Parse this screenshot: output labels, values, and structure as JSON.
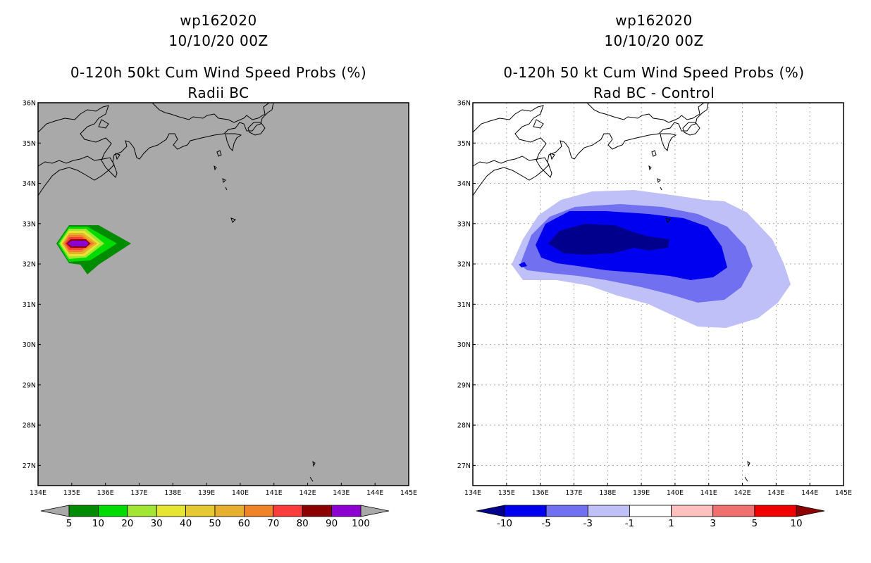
{
  "left_panel": {
    "storm_id": "wp162020",
    "datetime": "10/10/20 00Z",
    "title": "0-120h 50kt Cum Wind Speed Probs (%)",
    "subtitle": "Radii BC",
    "background_color": "#a9a9a9",
    "colorbar": {
      "labels": [
        "5",
        "10",
        "20",
        "30",
        "40",
        "50",
        "60",
        "70",
        "80",
        "90",
        "100"
      ],
      "colors": [
        "#008c00",
        "#00dc00",
        "#a0e632",
        "#e6e632",
        "#e6c832",
        "#e6af2d",
        "#f08228",
        "#fa3c3c",
        "#8c0000",
        "#8c00d2"
      ]
    }
  },
  "right_panel": {
    "storm_id": "wp162020",
    "datetime": "10/10/20 00Z",
    "title": "0-120h 50 kt Cum Wind Speed Probs (%)",
    "subtitle": "Rad BC - Control",
    "colorbar": {
      "labels": [
        "-10",
        "-5",
        "-3",
        "-1",
        "1",
        "3",
        "5",
        "10"
      ],
      "colors": [
        "#00008c",
        "#0000f0",
        "#7070f0",
        "#c0c0f8",
        "#ffffff",
        "#ffc0c0",
        "#f07070",
        "#f00000",
        "#8c0000"
      ]
    }
  },
  "axes": {
    "x_ticks": [
      "134E",
      "135E",
      "136E",
      "137E",
      "138E",
      "139E",
      "140E",
      "141E",
      "142E",
      "143E",
      "144E",
      "145E"
    ],
    "y_ticks": [
      "36N",
      "35N",
      "34N",
      "33N",
      "32N",
      "31N",
      "30N",
      "29N",
      "28N",
      "27N"
    ],
    "lon_range": [
      134,
      145
    ],
    "lat_range": [
      26.5,
      36
    ]
  }
}
